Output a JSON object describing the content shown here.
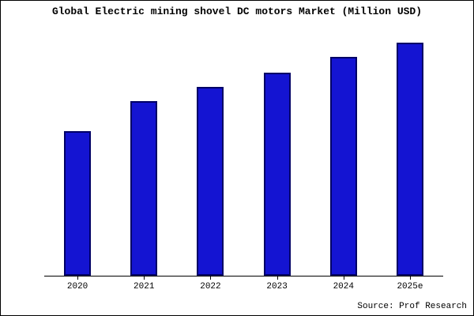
{
  "chart_data": {
    "type": "bar",
    "title": "Global Electric mining shovel DC motors Market (Million USD)",
    "categories": [
      "2020",
      "2021",
      "2022",
      "2023",
      "2024",
      "2025e"
    ],
    "values": [
      62,
      75,
      81,
      87,
      94,
      100
    ],
    "xlabel": "",
    "ylabel": "",
    "ylim": [
      0,
      103
    ],
    "grid": false,
    "legend": "none",
    "bar_color": "#1414d2",
    "bar_border_color": "#000066",
    "source": "Source: Prof Research"
  }
}
